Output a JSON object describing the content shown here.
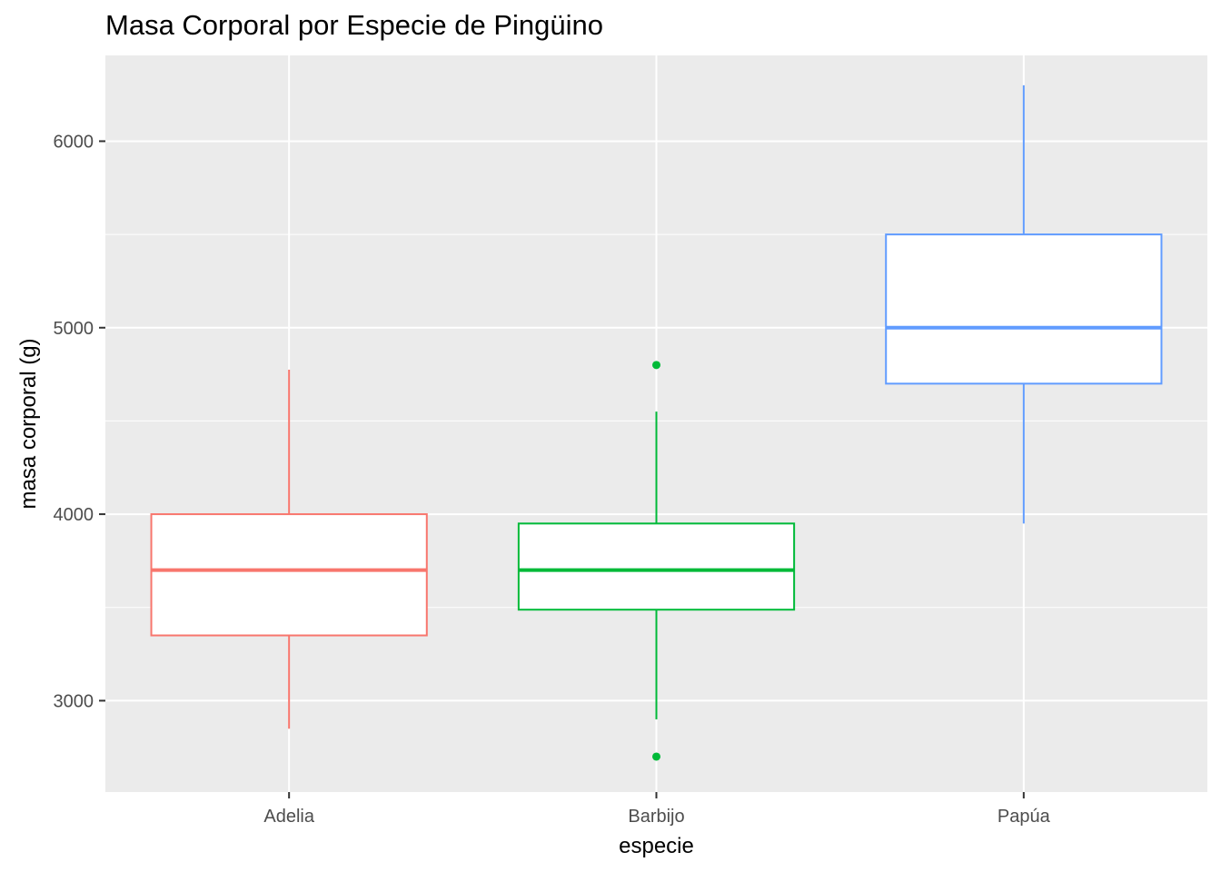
{
  "chart_data": {
    "type": "boxplot",
    "title": "Masa Corporal por Especie de Pingüino",
    "xlabel": "especie",
    "ylabel": "masa corporal (g)",
    "ylim": [
      2510,
      6460
    ],
    "y_ticks": [
      3000,
      4000,
      5000,
      6000
    ],
    "categories": [
      "Adelia",
      "Barbijo",
      "Papúa"
    ],
    "boxes": [
      {
        "category": "Adelia",
        "color": "#F8766D",
        "whisker_low": 2850,
        "q1": 3350,
        "median": 3700,
        "q3": 4000,
        "whisker_high": 4775,
        "outliers": []
      },
      {
        "category": "Barbijo",
        "color": "#00BA38",
        "whisker_low": 2900,
        "q1": 3488,
        "median": 3700,
        "q3": 3950,
        "whisker_high": 4550,
        "outliers": [
          2700,
          4800
        ]
      },
      {
        "category": "Papúa",
        "color": "#619CFF",
        "whisker_low": 3950,
        "q1": 4700,
        "median": 5000,
        "q3": 5500,
        "whisker_high": 6300,
        "outliers": []
      }
    ],
    "panel_background": "#EBEBEB",
    "grid": true,
    "legend": "none"
  }
}
